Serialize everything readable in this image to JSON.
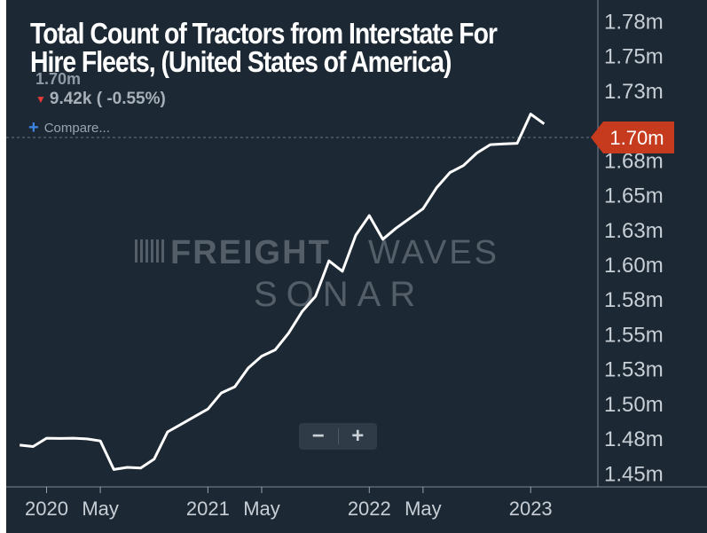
{
  "header": {
    "title": "Total Count of Tractors from Interstate For Hire Fleets, (United States of America)",
    "current_value": "1.70m",
    "change": "9.42k ( -0.55%)",
    "compare_label": "Compare..."
  },
  "watermark": {
    "line1_bold": "FREIGHT",
    "line1_light": "WAVES",
    "line2": "SONAR"
  },
  "zoom": {
    "minus_label": "−",
    "plus_label": "+"
  },
  "colors": {
    "background": "#1c2833",
    "line": "#ffffff",
    "price_tag": "#c63a1e",
    "axis_text": "#c7ced5",
    "panel_border": "#7d8a96"
  },
  "chart_data": {
    "type": "line",
    "title": "Total Count of Tractors from Interstate For Hire Fleets, (United States of America)",
    "xlabel": "",
    "ylabel": "",
    "ylim": [
      1.44,
      1.79
    ],
    "x_ticks": [
      {
        "label": "2020",
        "x": "2020-01"
      },
      {
        "label": "May",
        "x": "2020-05"
      },
      {
        "label": "2021",
        "x": "2021-01"
      },
      {
        "label": "May",
        "x": "2021-05"
      },
      {
        "label": "2022",
        "x": "2022-01"
      },
      {
        "label": "May",
        "x": "2022-05"
      },
      {
        "label": "2023",
        "x": "2023-01"
      }
    ],
    "y_ticks": [
      {
        "label": "1.78m",
        "value": 1.775
      },
      {
        "label": "1.75m",
        "value": 1.75
      },
      {
        "label": "1.73m",
        "value": 1.725
      },
      {
        "label": "1.68m",
        "value": 1.675
      },
      {
        "label": "1.65m",
        "value": 1.65
      },
      {
        "label": "1.63m",
        "value": 1.625
      },
      {
        "label": "1.60m",
        "value": 1.6
      },
      {
        "label": "1.58m",
        "value": 1.575
      },
      {
        "label": "1.55m",
        "value": 1.55
      },
      {
        "label": "1.53m",
        "value": 1.525
      },
      {
        "label": "1.50m",
        "value": 1.5
      },
      {
        "label": "1.48m",
        "value": 1.475
      },
      {
        "label": "1.45m",
        "value": 1.45
      }
    ],
    "last_value_label": "1.70m",
    "last_value": 1.701,
    "x_start": "2019-10",
    "x_end": "2023-06",
    "series": [
      {
        "values": [
          [
            "2019-11",
            1.47
          ],
          [
            "2019-12",
            1.469
          ],
          [
            "2020-01",
            1.475
          ],
          [
            "2020-02",
            1.4748
          ],
          [
            "2020-03",
            1.475
          ],
          [
            "2020-04",
            1.4745
          ],
          [
            "2020-05",
            1.473
          ],
          [
            "2020-06",
            1.4525
          ],
          [
            "2020-07",
            1.454
          ],
          [
            "2020-08",
            1.4535
          ],
          [
            "2020-09",
            1.46
          ],
          [
            "2020-10",
            1.4795
          ],
          [
            "2020-11",
            1.485
          ],
          [
            "2020-12",
            1.4905
          ],
          [
            "2021-01",
            1.496
          ],
          [
            "2021-02",
            1.5075
          ],
          [
            "2021-03",
            1.512
          ],
          [
            "2021-04",
            1.5255
          ],
          [
            "2021-05",
            1.534
          ],
          [
            "2021-06",
            1.5385
          ],
          [
            "2021-07",
            1.5505
          ],
          [
            "2021-08",
            1.566
          ],
          [
            "2021-09",
            1.577
          ],
          [
            "2021-10",
            1.6025
          ],
          [
            "2021-11",
            1.595
          ],
          [
            "2021-12",
            1.621
          ],
          [
            "2022-01",
            1.635
          ],
          [
            "2022-02",
            1.618
          ],
          [
            "2022-03",
            1.626
          ],
          [
            "2022-04",
            1.633
          ],
          [
            "2022-05",
            1.64
          ],
          [
            "2022-06",
            1.655
          ],
          [
            "2022-07",
            1.666
          ],
          [
            "2022-08",
            1.671
          ],
          [
            "2022-09",
            1.68
          ],
          [
            "2022-10",
            1.686
          ],
          [
            "2022-11",
            1.6865
          ],
          [
            "2022-12",
            1.687
          ],
          [
            "2023-01",
            1.708
          ],
          [
            "2023-02",
            1.701
          ]
        ]
      }
    ]
  }
}
